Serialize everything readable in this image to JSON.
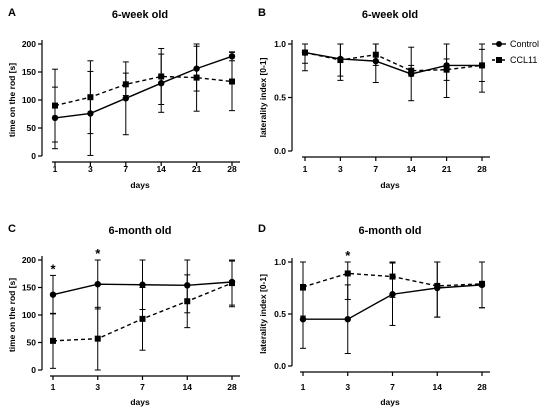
{
  "legend": {
    "items": [
      {
        "name": "Control",
        "marker": "circle",
        "dash": "solid"
      },
      {
        "name": "CCL11",
        "marker": "square",
        "dash": "dashed"
      }
    ],
    "placement": "top-right"
  },
  "chart_data": [
    {
      "panel": "A",
      "type": "line",
      "title": "6-week old",
      "xlabel": "days",
      "ylabel": "time on the rod [s]",
      "categories": [
        "1",
        "3",
        "7",
        "14",
        "21",
        "28"
      ],
      "ylim": [
        0,
        200
      ],
      "yticks": [
        "0",
        "50",
        "100",
        "150",
        "200"
      ],
      "series": [
        {
          "name": "Control",
          "values": [
            68,
            76,
            103,
            130,
            156,
            178
          ],
          "err": [
            55,
            75,
            65,
            52,
            40,
            8
          ]
        },
        {
          "name": "CCL11",
          "values": [
            90,
            105,
            128,
            142,
            140,
            133
          ],
          "err": [
            65,
            65,
            20,
            50,
            60,
            52
          ]
        }
      ],
      "annotations": []
    },
    {
      "panel": "B",
      "type": "line",
      "title": "6-week old",
      "xlabel": "days",
      "ylabel": "laterality index [0-1]",
      "categories": [
        "1",
        "3",
        "7",
        "14",
        "21",
        "28"
      ],
      "ylim": [
        0,
        1.0
      ],
      "yticks": [
        "0.0",
        "0.5",
        "1.0"
      ],
      "series": [
        {
          "name": "Control",
          "values": [
            0.92,
            0.86,
            0.84,
            0.72,
            0.8,
            0.8
          ],
          "err": [
            0.17,
            0.2,
            0.2,
            0.25,
            0.3,
            0.25
          ]
        },
        {
          "name": "CCL11",
          "values": [
            0.92,
            0.85,
            0.9,
            0.75,
            0.76,
            0.8
          ],
          "err": [
            0.1,
            0.15,
            0.1,
            0.05,
            0.1,
            0.15
          ]
        }
      ],
      "annotations": []
    },
    {
      "panel": "C",
      "type": "line",
      "title": "6-month old",
      "xlabel": "days",
      "ylabel": "time on the rod [s]",
      "categories": [
        "1",
        "3",
        "7",
        "14",
        "28"
      ],
      "ylim": [
        0,
        200
      ],
      "yticks": [
        "0",
        "50",
        "100",
        "150",
        "200"
      ],
      "series": [
        {
          "name": "Control",
          "values": [
            137,
            156,
            155,
            154,
            160
          ],
          "err": [
            35,
            45,
            45,
            50,
            45
          ]
        },
        {
          "name": "CCL11",
          "values": [
            53,
            57,
            93,
            125,
            158
          ],
          "err": [
            50,
            57,
            57,
            48,
            40
          ]
        }
      ],
      "annotations": [
        {
          "category": "1",
          "text": "*"
        },
        {
          "category": "3",
          "text": "*"
        }
      ]
    },
    {
      "panel": "D",
      "type": "line",
      "title": "6-month old",
      "xlabel": "days",
      "ylabel": "laterality index [0-1]",
      "categories": [
        "1",
        "3",
        "7",
        "14",
        "28"
      ],
      "ylim": [
        0,
        1.0
      ],
      "yticks": [
        "0.0",
        "0.5",
        "1.0"
      ],
      "series": [
        {
          "name": "Control",
          "values": [
            0.45,
            0.45,
            0.69,
            0.75,
            0.78
          ],
          "err": [
            0.28,
            0.33,
            0.3,
            0.28,
            0.22
          ]
        },
        {
          "name": "CCL11",
          "values": [
            0.76,
            0.89,
            0.86,
            0.77,
            0.79
          ],
          "err": [
            0.28,
            0.25,
            0.2,
            0.3,
            0.23
          ]
        }
      ],
      "annotations": [
        {
          "category": "3",
          "text": "*"
        }
      ]
    }
  ]
}
